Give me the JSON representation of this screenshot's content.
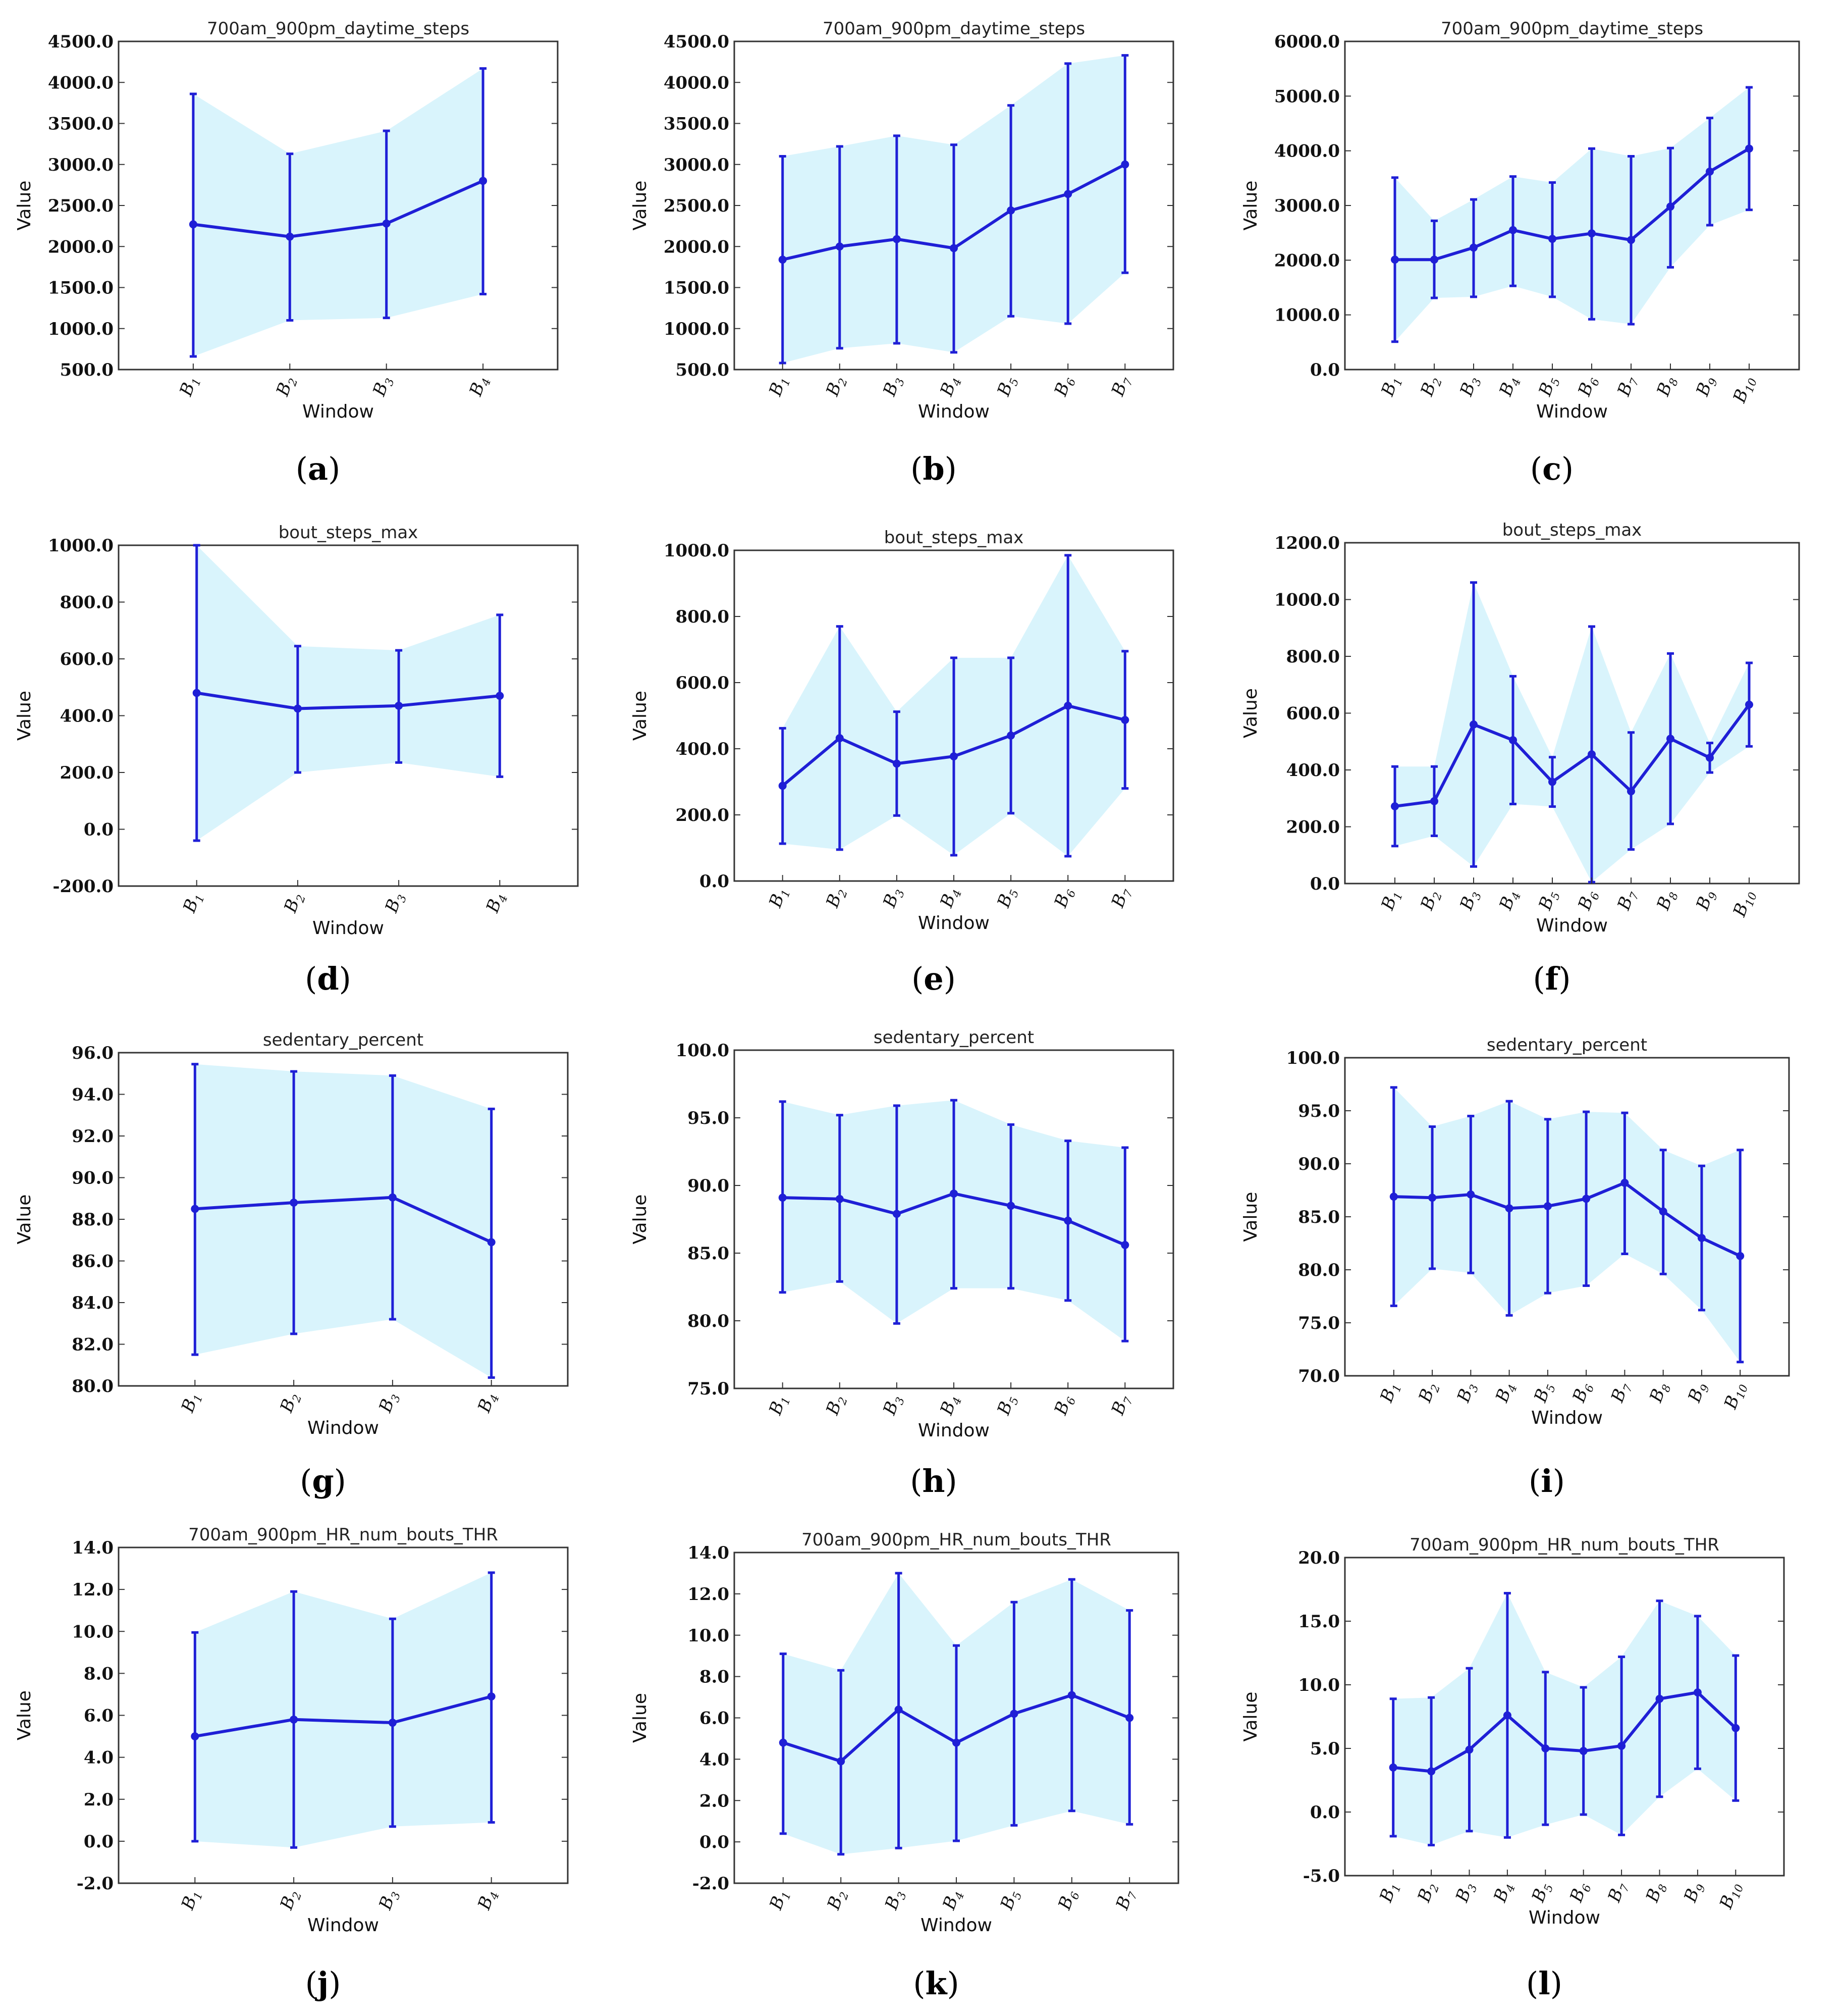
{
  "figure": {
    "panel_letters": [
      "a",
      "b",
      "c",
      "d",
      "e",
      "f",
      "g",
      "h",
      "i",
      "j",
      "k",
      "l"
    ]
  },
  "chart_data": [
    {
      "id": "a",
      "type": "line",
      "title": "700am_900pm_daytime_steps",
      "xlabel": "Window",
      "ylabel": "Value",
      "categories": [
        "B1",
        "B2",
        "B3",
        "B4"
      ],
      "ylim": [
        500,
        4500
      ],
      "yticks": [
        "500.0",
        "1000.0",
        "1500.0",
        "2000.0",
        "2500.0",
        "3000.0",
        "3500.0",
        "4000.0",
        "4500.0"
      ],
      "values": [
        2270,
        2120,
        2280,
        2800
      ],
      "upper": [
        3860,
        3130,
        3410,
        4170
      ],
      "lower": [
        660,
        1100,
        1130,
        1420
      ]
    },
    {
      "id": "b",
      "type": "line",
      "title": "700am_900pm_daytime_steps",
      "xlabel": "Window",
      "ylabel": "Value",
      "categories": [
        "B1",
        "B2",
        "B3",
        "B4",
        "B5",
        "B6",
        "B7"
      ],
      "ylim": [
        500,
        4500
      ],
      "yticks": [
        "500.0",
        "1000.0",
        "1500.0",
        "2000.0",
        "2500.0",
        "3000.0",
        "3500.0",
        "4000.0",
        "4500.0"
      ],
      "values": [
        1840,
        2000,
        2090,
        1980,
        2440,
        2640,
        3000
      ],
      "upper": [
        3100,
        3220,
        3350,
        3240,
        3720,
        4230,
        4330
      ],
      "lower": [
        580,
        760,
        820,
        710,
        1150,
        1060,
        1680
      ]
    },
    {
      "id": "c",
      "type": "line",
      "title": "700am_900pm_daytime_steps",
      "xlabel": "Window",
      "ylabel": "Value",
      "categories": [
        "B1",
        "B2",
        "B3",
        "B4",
        "B5",
        "B6",
        "B7",
        "B8",
        "B9",
        "B10"
      ],
      "ylim": [
        0,
        6000
      ],
      "yticks": [
        "0.0",
        "1000.0",
        "2000.0",
        "3000.0",
        "4000.0",
        "5000.0",
        "6000.0"
      ],
      "values": [
        2010,
        2010,
        2230,
        2550,
        2390,
        2490,
        2370,
        2980,
        3620,
        4040
      ],
      "upper": [
        3510,
        2720,
        3110,
        3530,
        3420,
        4040,
        3900,
        4050,
        4600,
        5160
      ],
      "lower": [
        510,
        1310,
        1330,
        1530,
        1330,
        920,
        830,
        1870,
        2640,
        2920
      ]
    },
    {
      "id": "d",
      "type": "line",
      "title": "bout_steps_max",
      "xlabel": "Window",
      "ylabel": "Value",
      "categories": [
        "B1",
        "B2",
        "B3",
        "B4"
      ],
      "ylim": [
        -200,
        1000
      ],
      "yticks": [
        "-200.0",
        "0.0",
        "200.0",
        "400.0",
        "600.0",
        "800.0",
        "1000.0"
      ],
      "values": [
        480,
        425,
        435,
        470
      ],
      "upper": [
        1000,
        645,
        630,
        755
      ],
      "lower": [
        -40,
        200,
        235,
        185
      ]
    },
    {
      "id": "e",
      "type": "line",
      "title": "bout_steps_max",
      "xlabel": "Window",
      "ylabel": "Value",
      "categories": [
        "B1",
        "B2",
        "B3",
        "B4",
        "B5",
        "B6",
        "B7"
      ],
      "ylim": [
        0,
        1000
      ],
      "yticks": [
        "0.0",
        "200.0",
        "400.0",
        "600.0",
        "800.0",
        "1000.0"
      ],
      "values": [
        288,
        432,
        355,
        377,
        440,
        530,
        487
      ],
      "upper": [
        462,
        770,
        512,
        675,
        675,
        985,
        695
      ],
      "lower": [
        113,
        95,
        198,
        78,
        205,
        75,
        280
      ]
    },
    {
      "id": "f",
      "type": "line",
      "title": "bout_steps_max",
      "xlabel": "Window",
      "ylabel": "Value",
      "categories": [
        "B1",
        "B2",
        "B3",
        "B4",
        "B5",
        "B6",
        "B7",
        "B8",
        "B9",
        "B10"
      ],
      "ylim": [
        0,
        1200
      ],
      "yticks": [
        "0.0",
        "200.0",
        "400.0",
        "600.0",
        "800.0",
        "1000.0",
        "1200.0"
      ],
      "values": [
        272,
        290,
        560,
        505,
        358,
        455,
        325,
        510,
        443,
        630
      ],
      "upper": [
        412,
        412,
        1060,
        730,
        445,
        905,
        532,
        810,
        495,
        777
      ],
      "lower": [
        132,
        168,
        60,
        280,
        271,
        5,
        120,
        210,
        391,
        483
      ]
    },
    {
      "id": "g",
      "type": "line",
      "title": "sedentary_percent",
      "xlabel": "Window",
      "ylabel": "Value",
      "categories": [
        "B1",
        "B2",
        "B3",
        "B4"
      ],
      "ylim": [
        80,
        96
      ],
      "yticks": [
        "80.0",
        "82.0",
        "84.0",
        "86.0",
        "88.0",
        "90.0",
        "92.0",
        "94.0",
        "96.0"
      ],
      "values": [
        88.5,
        88.8,
        89.05,
        86.9
      ],
      "upper": [
        95.45,
        95.1,
        94.9,
        93.3
      ],
      "lower": [
        81.5,
        82.5,
        83.2,
        80.4
      ]
    },
    {
      "id": "h",
      "type": "line",
      "title": "sedentary_percent",
      "xlabel": "Window",
      "ylabel": "Value",
      "categories": [
        "B1",
        "B2",
        "B3",
        "B4",
        "B5",
        "B6",
        "B7"
      ],
      "ylim": [
        75,
        100
      ],
      "yticks": [
        "75.0",
        "80.0",
        "85.0",
        "90.0",
        "95.0",
        "100.0"
      ],
      "values": [
        89.1,
        89.0,
        87.9,
        89.4,
        88.5,
        87.4,
        85.6
      ],
      "upper": [
        96.2,
        95.2,
        95.9,
        96.3,
        94.5,
        93.3,
        92.8
      ],
      "lower": [
        82.1,
        82.9,
        79.8,
        82.4,
        82.4,
        81.5,
        78.5
      ]
    },
    {
      "id": "i",
      "type": "line",
      "title": "sedentary_percent",
      "xlabel": "Window",
      "ylabel": "Value",
      "categories": [
        "B1",
        "B2",
        "B3",
        "B4",
        "B5",
        "B6",
        "B7",
        "B8",
        "B9",
        "B10"
      ],
      "ylim": [
        70,
        100
      ],
      "yticks": [
        "70.0",
        "75.0",
        "80.0",
        "85.0",
        "90.0",
        "95.0",
        "100.0"
      ],
      "values": [
        86.9,
        86.8,
        87.1,
        85.8,
        86.0,
        86.7,
        88.2,
        85.5,
        83.0,
        81.3
      ],
      "upper": [
        97.2,
        93.5,
        94.5,
        95.9,
        94.2,
        94.9,
        94.8,
        91.3,
        89.8,
        91.3
      ],
      "lower": [
        76.6,
        80.1,
        79.7,
        75.7,
        77.8,
        78.5,
        81.5,
        79.6,
        76.2,
        71.3
      ]
    },
    {
      "id": "j",
      "type": "line",
      "title": "700am_900pm_HR_num_bouts_THR",
      "xlabel": "Window",
      "ylabel": "Value",
      "categories": [
        "B1",
        "B2",
        "B3",
        "B4"
      ],
      "ylim": [
        -2,
        14
      ],
      "yticks": [
        "-2.0",
        "0.0",
        "2.0",
        "4.0",
        "6.0",
        "8.0",
        "10.0",
        "12.0",
        "14.0"
      ],
      "values": [
        5.0,
        5.8,
        5.65,
        6.9
      ],
      "upper": [
        9.95,
        11.9,
        10.6,
        12.8
      ],
      "lower": [
        0.0,
        -0.3,
        0.7,
        0.9
      ]
    },
    {
      "id": "k",
      "type": "line",
      "title": "700am_900pm_HR_num_bouts_THR",
      "xlabel": "Window",
      "ylabel": "Value",
      "categories": [
        "B1",
        "B2",
        "B3",
        "B4",
        "B5",
        "B6",
        "B7"
      ],
      "ylim": [
        -2,
        14
      ],
      "yticks": [
        "-2.0",
        "0.0",
        "2.0",
        "4.0",
        "6.0",
        "8.0",
        "10.0",
        "12.0",
        "14.0"
      ],
      "values": [
        4.8,
        3.9,
        6.4,
        4.8,
        6.2,
        7.1,
        6.0
      ],
      "upper": [
        9.1,
        8.3,
        13.0,
        9.5,
        11.6,
        12.7,
        11.2
      ],
      "lower": [
        0.4,
        -0.6,
        -0.3,
        0.05,
        0.8,
        1.5,
        0.85
      ]
    },
    {
      "id": "l",
      "type": "line",
      "title": "700am_900pm_HR_num_bouts_THR",
      "xlabel": "Window",
      "ylabel": "Value",
      "categories": [
        "B1",
        "B2",
        "B3",
        "B4",
        "B5",
        "B6",
        "B7",
        "B8",
        "B9",
        "B10"
      ],
      "ylim": [
        -5,
        20
      ],
      "yticks": [
        "-5.0",
        "0.0",
        "5.0",
        "10.0",
        "15.0",
        "20.0"
      ],
      "values": [
        3.5,
        3.2,
        4.9,
        7.6,
        5.0,
        4.8,
        5.2,
        8.9,
        9.4,
        6.6
      ],
      "upper": [
        8.9,
        9.0,
        11.3,
        17.2,
        11.0,
        9.8,
        12.2,
        16.6,
        15.4,
        12.3
      ],
      "lower": [
        -1.9,
        -2.6,
        -1.5,
        -2.0,
        -1.0,
        -0.2,
        -1.8,
        1.2,
        3.4,
        0.9
      ]
    }
  ]
}
